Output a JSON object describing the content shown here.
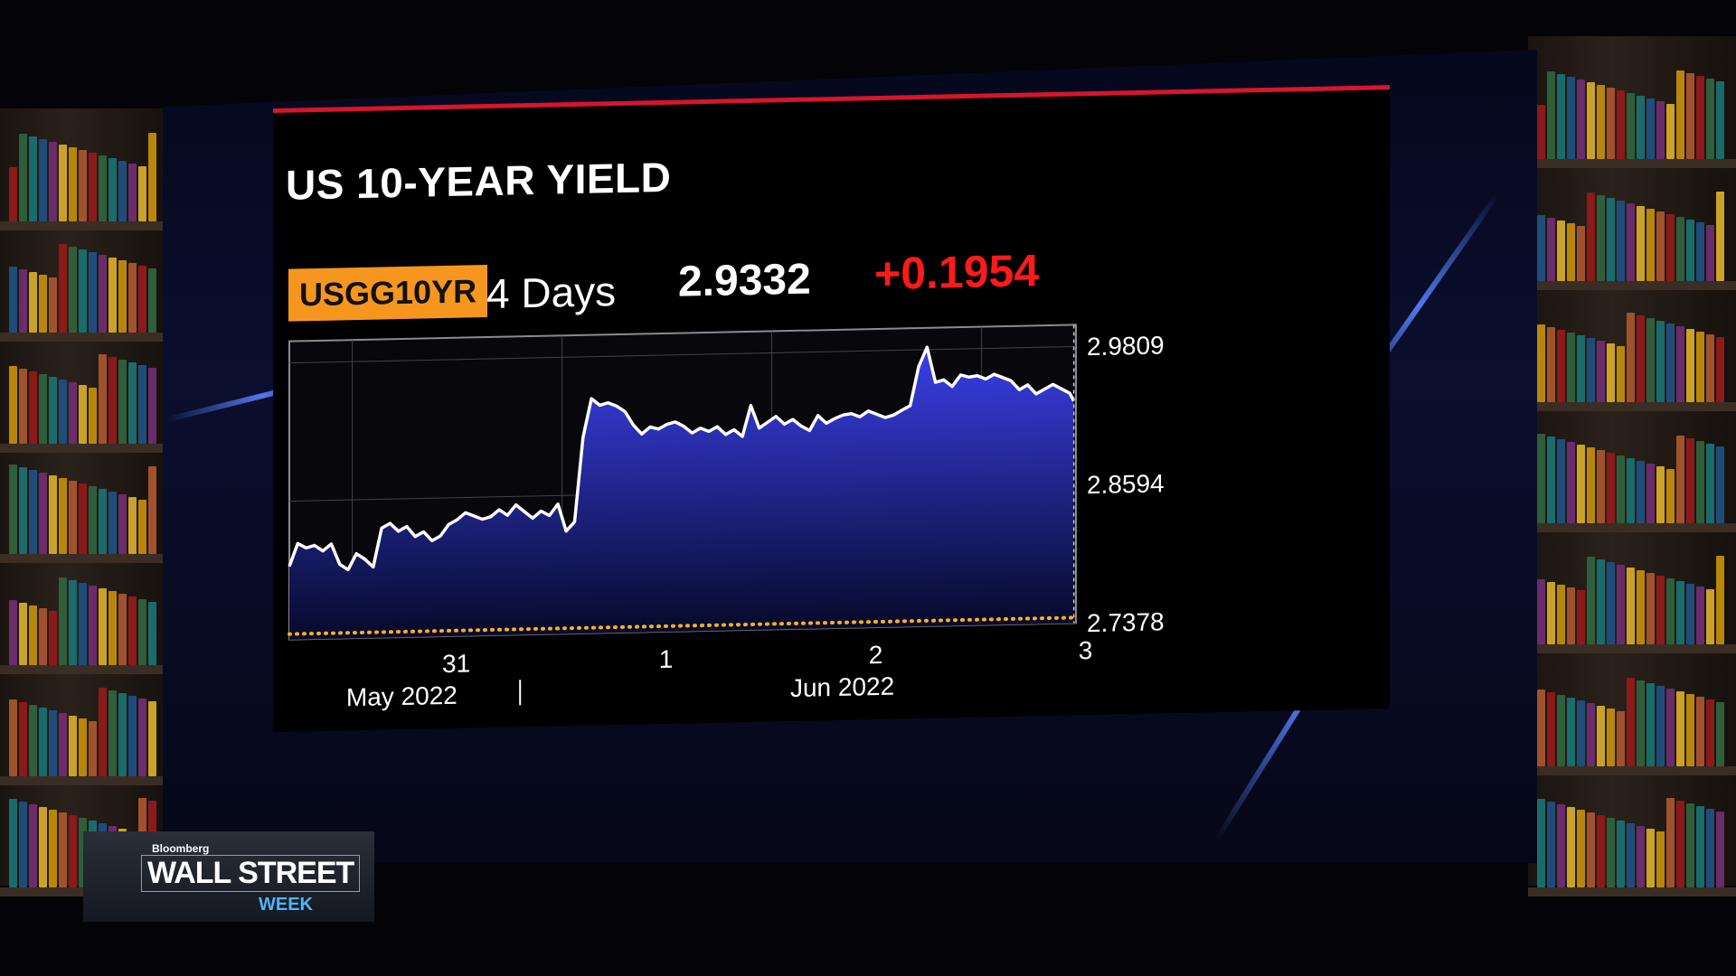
{
  "panel": {
    "title": "US 10-YEAR YIELD",
    "ticker": "USGG10YR",
    "period": "4 Days",
    "last": "2.9332",
    "change": "+0.1954"
  },
  "chart_data": {
    "type": "area",
    "title": "US 10-YEAR YIELD",
    "ylim": [
      2.7378,
      3.0
    ],
    "y_ticks": [
      "2.9809",
      "2.8594",
      "2.7378"
    ],
    "x_ticks": [
      {
        "label": "31",
        "x": 0.55
      },
      {
        "label": "1",
        "x": 1.55
      },
      {
        "label": "2",
        "x": 2.55
      },
      {
        "label": "3",
        "x": 3.55
      }
    ],
    "x_period_labels": [
      {
        "label": "May 2022",
        "x": 0.45
      },
      {
        "label": "Jun 2022",
        "x": 2.55
      }
    ],
    "xlim": [
      0,
      3.75
    ],
    "grid": true,
    "reference_line": 2.7378,
    "series": [
      {
        "x": [
          0.0,
          0.04,
          0.08,
          0.12,
          0.16,
          0.2,
          0.24,
          0.28,
          0.32,
          0.36,
          0.4,
          0.44,
          0.48,
          0.52,
          0.56,
          0.6,
          0.64,
          0.68,
          0.72,
          0.76,
          0.8,
          0.84,
          0.88,
          0.92,
          0.96,
          1.0,
          1.04,
          1.08,
          1.12,
          1.16,
          1.2,
          1.24,
          1.28,
          1.32,
          1.36,
          1.4,
          1.44,
          1.48,
          1.52,
          1.56,
          1.6,
          1.64,
          1.68,
          1.72,
          1.76,
          1.8,
          1.84,
          1.88,
          1.92,
          1.96,
          2.0,
          2.04,
          2.08,
          2.12,
          2.16,
          2.2,
          2.24,
          2.28,
          2.32,
          2.36,
          2.4,
          2.44,
          2.48,
          2.52,
          2.56,
          2.6,
          2.64,
          2.68,
          2.72,
          2.76,
          2.8,
          2.84,
          2.88,
          2.92,
          2.96,
          3.0,
          3.04,
          3.08,
          3.12,
          3.16,
          3.2,
          3.24,
          3.28,
          3.32,
          3.36,
          3.4,
          3.44,
          3.48,
          3.52,
          3.56,
          3.6,
          3.64,
          3.68,
          3.72,
          3.74
        ],
        "values": [
          2.802,
          2.822,
          2.818,
          2.82,
          2.815,
          2.821,
          2.803,
          2.798,
          2.812,
          2.807,
          2.8,
          2.834,
          2.838,
          2.831,
          2.835,
          2.826,
          2.83,
          2.822,
          2.826,
          2.836,
          2.84,
          2.846,
          2.843,
          2.84,
          2.842,
          2.848,
          2.843,
          2.852,
          2.846,
          2.84,
          2.846,
          2.842,
          2.852,
          2.828,
          2.836,
          2.91,
          2.944,
          2.938,
          2.94,
          2.937,
          2.932,
          2.92,
          2.912,
          2.918,
          2.916,
          2.92,
          2.922,
          2.918,
          2.912,
          2.916,
          2.913,
          2.917,
          2.91,
          2.914,
          2.908,
          2.935,
          2.915,
          2.92,
          2.925,
          2.918,
          2.922,
          2.916,
          2.912,
          2.925,
          2.918,
          2.922,
          2.925,
          2.926,
          2.923,
          2.928,
          2.925,
          2.922,
          2.924,
          2.928,
          2.932,
          2.966,
          2.983,
          2.952,
          2.954,
          2.948,
          2.958,
          2.956,
          2.957,
          2.954,
          2.958,
          2.955,
          2.952,
          2.944,
          2.948,
          2.94,
          2.944,
          2.948,
          2.944,
          2.94,
          2.933
        ]
      }
    ]
  },
  "colors": {
    "accent_ticker": "#f7961f",
    "change_red": "#ff1a1a",
    "title_rule": "#d8152a",
    "area_fill_top": "#3a3fe8",
    "area_fill_bottom": "#060a2a",
    "reference_dots": "#ffb020"
  },
  "branding": {
    "brand": "Bloomberg",
    "show": "WALL STREET",
    "show_sub": "WEEK"
  }
}
